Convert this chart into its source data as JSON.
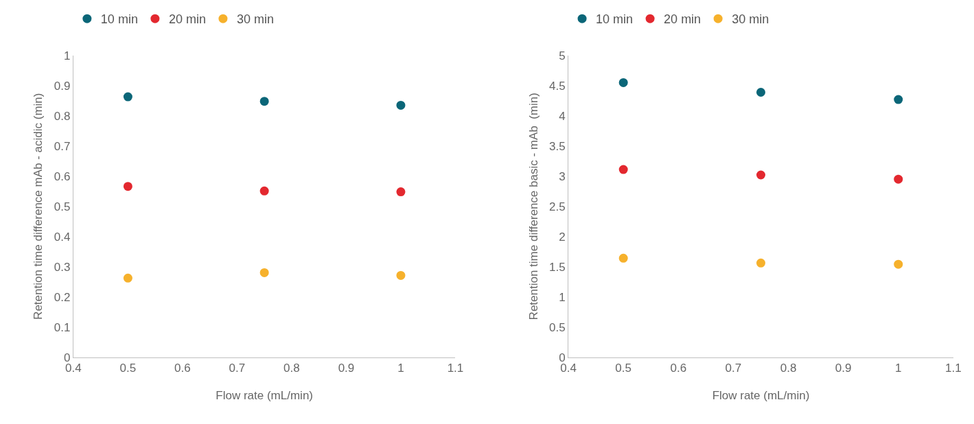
{
  "chart_data": [
    {
      "type": "scatter",
      "xlabel": "Flow rate (mL/min)",
      "ylabel": "Retention time difference mAb - acidic (min)",
      "x": [
        0.5,
        0.75,
        1
      ],
      "marker": "circle",
      "legend": "top left",
      "xlim": [
        0.4,
        1.1
      ],
      "xticks": [
        0.4,
        0.5,
        0.6,
        0.7,
        0.8,
        0.9,
        1,
        1.1
      ],
      "ylim": [
        0,
        1
      ],
      "yticks": [
        0,
        0.1,
        0.2,
        0.3,
        0.4,
        0.5,
        0.6,
        0.7,
        0.8,
        0.9,
        1
      ],
      "series": [
        {
          "name": "10 min",
          "color": "#0b6678",
          "values": [
            0.863,
            0.848,
            0.835
          ]
        },
        {
          "name": "20 min",
          "color": "#e3282f",
          "values": [
            0.566,
            0.551,
            0.548
          ]
        },
        {
          "name": "30 min",
          "color": "#f6b12c",
          "values": [
            0.262,
            0.28,
            0.271
          ]
        }
      ]
    },
    {
      "type": "scatter",
      "xlabel": "Flow rate (mL/min)",
      "ylabel": "Retention time difference basic - mAb  (min)",
      "x": [
        0.5,
        0.75,
        1
      ],
      "marker": "circle",
      "legend": "top left",
      "xlim": [
        0.4,
        1.1
      ],
      "xticks": [
        0.4,
        0.5,
        0.6,
        0.7,
        0.8,
        0.9,
        1,
        1.1
      ],
      "ylim": [
        0,
        5
      ],
      "yticks": [
        0,
        0.5,
        1,
        1.5,
        2,
        2.5,
        3,
        3.5,
        4,
        4.5,
        5
      ],
      "series": [
        {
          "name": "10 min",
          "color": "#0b6678",
          "values": [
            4.55,
            4.39,
            4.27
          ]
        },
        {
          "name": "20 min",
          "color": "#e3282f",
          "values": [
            3.11,
            3.02,
            2.95
          ]
        },
        {
          "name": "30 min",
          "color": "#f6b12c",
          "values": [
            1.64,
            1.56,
            1.54
          ]
        }
      ]
    }
  ]
}
